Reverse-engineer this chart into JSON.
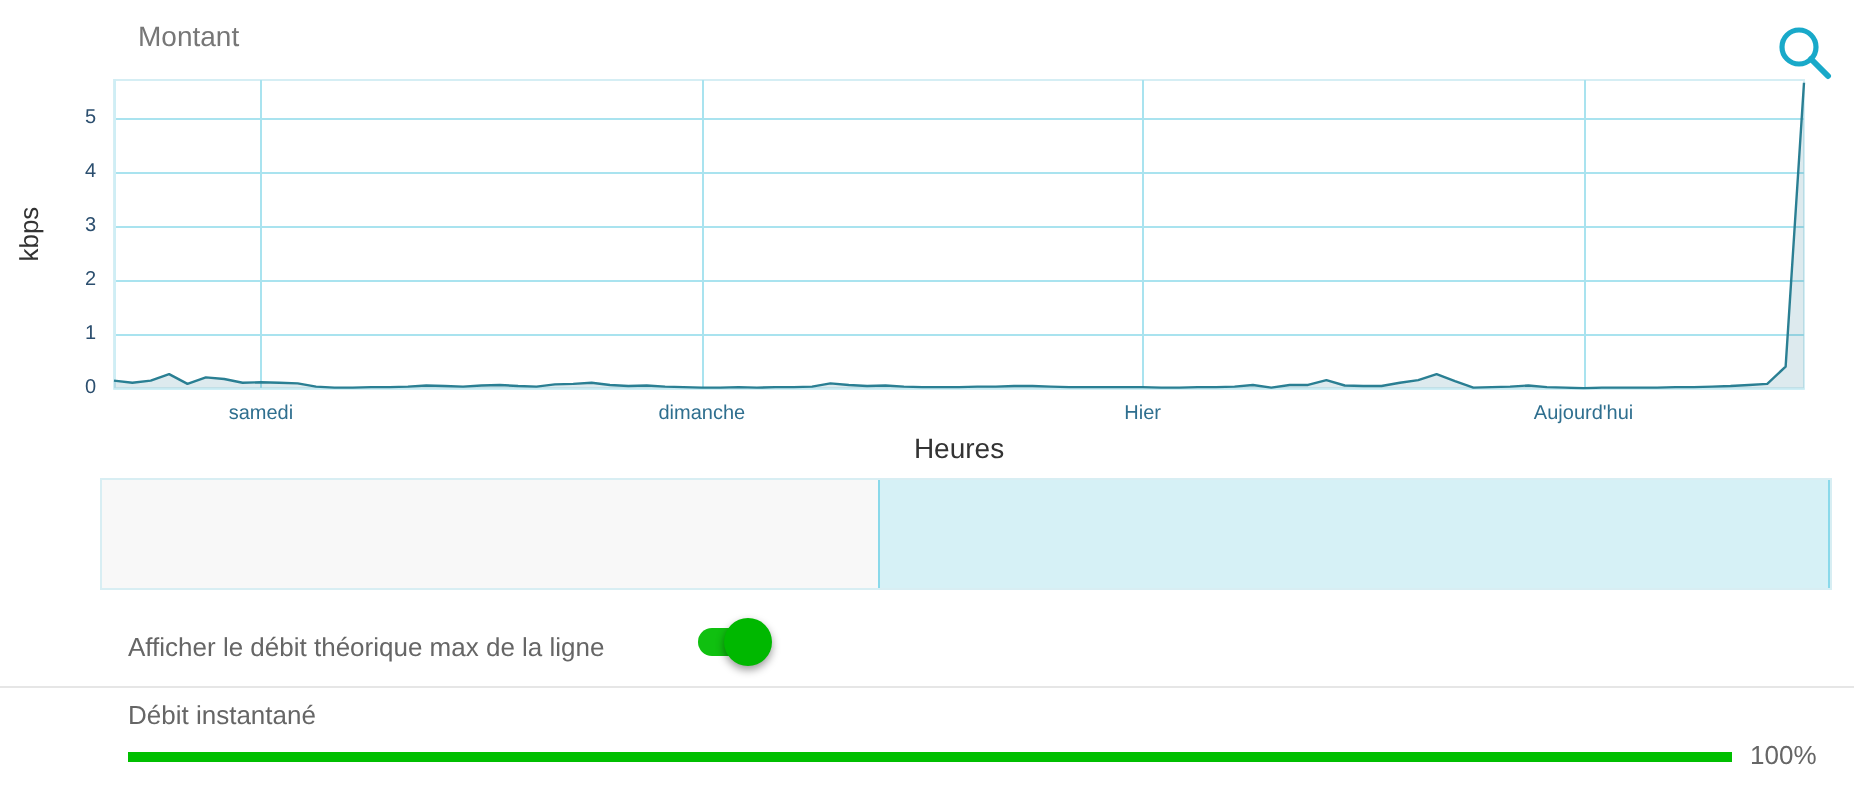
{
  "chart_data": {
    "type": "area",
    "title": "Montant",
    "xlabel": "Heures",
    "ylabel": "kbps",
    "categories": [
      null,
      null,
      null,
      null,
      null,
      null,
      null,
      null,
      "samedi",
      null,
      null,
      null,
      null,
      null,
      null,
      null,
      null,
      null,
      null,
      null,
      null,
      null,
      null,
      null,
      null,
      null,
      null,
      null,
      null,
      null,
      null,
      null,
      "dimanche",
      null,
      null,
      null,
      null,
      null,
      null,
      null,
      null,
      null,
      null,
      null,
      null,
      null,
      null,
      null,
      null,
      null,
      null,
      null,
      null,
      null,
      null,
      null,
      "Hier",
      null,
      null,
      null,
      null,
      null,
      null,
      null,
      null,
      null,
      null,
      null,
      null,
      null,
      null,
      null,
      null,
      null,
      null,
      null,
      null,
      null,
      null,
      null,
      "Aujourd'hui",
      null,
      null,
      null,
      null,
      null,
      null,
      null,
      null,
      null,
      null,
      null,
      null
    ],
    "ylim": [
      0,
      5.7
    ],
    "yticks": [
      0,
      1,
      2,
      3,
      4,
      5
    ],
    "grid": true,
    "marker": "none",
    "series": [
      {
        "color": "#2a7f93",
        "values": [
          0.14,
          0.1,
          0.14,
          0.26,
          0.08,
          0.2,
          0.17,
          0.1,
          0.11,
          0.1,
          0.09,
          0.03,
          0.01,
          0.01,
          0.02,
          0.02,
          0.03,
          0.05,
          0.04,
          0.03,
          0.05,
          0.06,
          0.04,
          0.03,
          0.07,
          0.08,
          0.1,
          0.06,
          0.04,
          0.05,
          0.03,
          0.02,
          0.01,
          0.01,
          0.02,
          0.01,
          0.02,
          0.02,
          0.03,
          0.09,
          0.06,
          0.04,
          0.05,
          0.03,
          0.02,
          0.02,
          0.02,
          0.03,
          0.03,
          0.04,
          0.04,
          0.03,
          0.02,
          0.02,
          0.02,
          0.02,
          0.02,
          0.01,
          0.01,
          0.02,
          0.02,
          0.03,
          0.06,
          0.01,
          0.06,
          0.06,
          0.15,
          0.05,
          0.04,
          0.04,
          0.1,
          0.15,
          0.26,
          0.13,
          0.01,
          0.02,
          0.03,
          0.05,
          0.02,
          0.01,
          0.0,
          0.01,
          0.01,
          0.01,
          0.01,
          0.02,
          0.02,
          0.03,
          0.04,
          0.06,
          0.08,
          0.4,
          5.65
        ]
      }
    ],
    "annotations": [
      "Afficher le débit théorique max de la ligne",
      "Débit instantané",
      "100%"
    ]
  }
}
